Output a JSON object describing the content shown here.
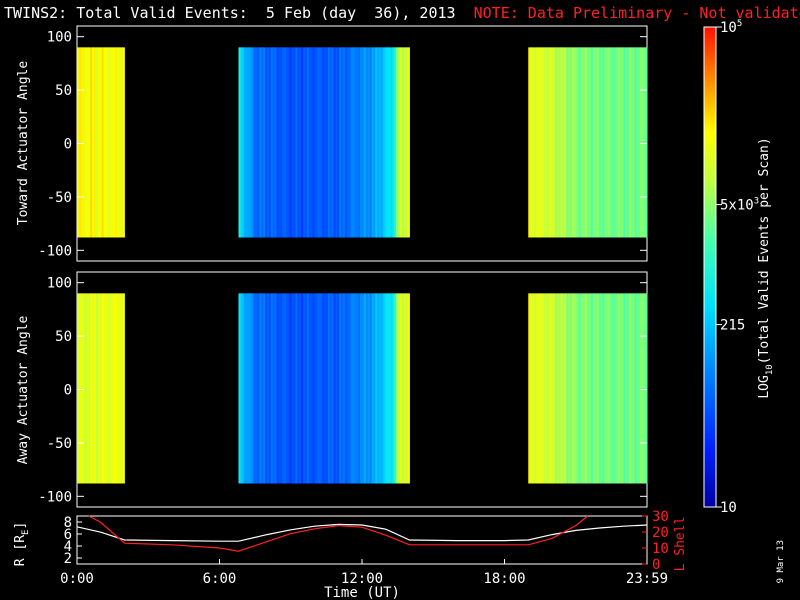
{
  "title": {
    "main": "TWINS2: Total Valid Events:  5 Feb (day  36), 2013",
    "note": "NOTE: Data Preliminary - Not validated",
    "note_color": "#ff2020"
  },
  "stamp": "9 Mar 13",
  "chart_data": [
    {
      "type": "heatmap",
      "ylabel": "Toward Actuator Angle",
      "ylim": [
        -110,
        110
      ],
      "yticks": [
        "100",
        "50",
        "0",
        "-50",
        "-100"
      ],
      "xlim": [
        0,
        24
      ],
      "angle_range": [
        -88,
        90
      ],
      "data_intervals_hours": [
        [
          0,
          2.0
        ],
        [
          6.8,
          14.0
        ],
        [
          19.0,
          24.0
        ]
      ],
      "intensity_profile": {
        "hours": [
          0,
          1,
          2,
          6.8,
          7.5,
          9,
          11,
          12.5,
          13.3,
          13.6,
          14,
          19,
          20,
          21,
          22,
          24
        ],
        "log_level": [
          0.78,
          0.77,
          0.76,
          0.45,
          0.25,
          0.2,
          0.22,
          0.32,
          0.45,
          0.7,
          0.72,
          0.75,
          0.7,
          0.62,
          0.6,
          0.6
        ]
      }
    },
    {
      "type": "heatmap",
      "ylabel": "Away Actuator Angle",
      "ylim": [
        -110,
        110
      ],
      "yticks": [
        "100",
        "50",
        "0",
        "-50",
        "-100"
      ],
      "xlim": [
        0,
        24
      ],
      "angle_range": [
        -88,
        90
      ],
      "data_intervals_hours": [
        [
          0,
          2.0
        ],
        [
          6.8,
          14.0
        ],
        [
          19.0,
          24.0
        ]
      ],
      "intensity_profile": {
        "hours": [
          0,
          1,
          2,
          6.8,
          7.5,
          9,
          11,
          12.5,
          13.3,
          13.6,
          14,
          19,
          20,
          21,
          22,
          24
        ],
        "log_level": [
          0.72,
          0.74,
          0.76,
          0.42,
          0.25,
          0.2,
          0.22,
          0.33,
          0.46,
          0.72,
          0.74,
          0.75,
          0.7,
          0.62,
          0.6,
          0.6
        ]
      }
    },
    {
      "type": "line",
      "xlabel": "Time (UT)",
      "xticks": [
        "0:00",
        "6:00",
        "12:00",
        "18:00",
        "23:59"
      ],
      "xtick_hours": [
        0,
        6,
        12,
        18,
        24
      ],
      "left_axis": {
        "label": "R [R",
        "label_sub": "E",
        "label_end": "]",
        "ylim": [
          1,
          9
        ],
        "ticks": [
          "8",
          "6",
          "4",
          "2"
        ]
      },
      "right_axis": {
        "label": "L Shell",
        "ylim": [
          0,
          30
        ],
        "ticks": [
          "30",
          "20",
          "10",
          "0"
        ],
        "color": "#ff2020"
      },
      "series": [
        {
          "color": "#ffffff",
          "axis": "left",
          "x": [
            0,
            1,
            2,
            4,
            6,
            6.8,
            8,
            9,
            10,
            11,
            12,
            13,
            14,
            16,
            18,
            19,
            20,
            21,
            22,
            23,
            24
          ],
          "values": [
            7.2,
            6.3,
            5.0,
            4.9,
            4.8,
            4.8,
            5.9,
            6.7,
            7.3,
            7.6,
            7.5,
            6.8,
            5.0,
            4.9,
            4.9,
            5.0,
            5.9,
            6.6,
            7.0,
            7.3,
            7.5
          ]
        },
        {
          "color": "#ff2020",
          "axis": "right",
          "x": [
            0.5,
            1,
            2,
            4,
            6,
            6.8,
            8,
            9,
            10,
            11,
            12,
            13,
            14,
            16,
            18,
            19,
            20,
            21,
            21.5
          ],
          "values": [
            30,
            26,
            13,
            12,
            10,
            8,
            14,
            19,
            22,
            24,
            23,
            18,
            12,
            12,
            12,
            12,
            16,
            24,
            30
          ]
        }
      ]
    }
  ],
  "colorbar": {
    "label": "LOG",
    "label_sub": "10",
    "label_rest": "(Total Valid  Events per Scan)",
    "ticks": [
      {
        "value": 1,
        "text": "10",
        "sup": ""
      },
      {
        "value": 0.62,
        "text": "215",
        "sup": ""
      },
      {
        "value": 0.37,
        "text": "5x10",
        "sup": "3"
      },
      {
        "value": 0.0,
        "text": "10",
        "sup": "5"
      }
    ]
  }
}
